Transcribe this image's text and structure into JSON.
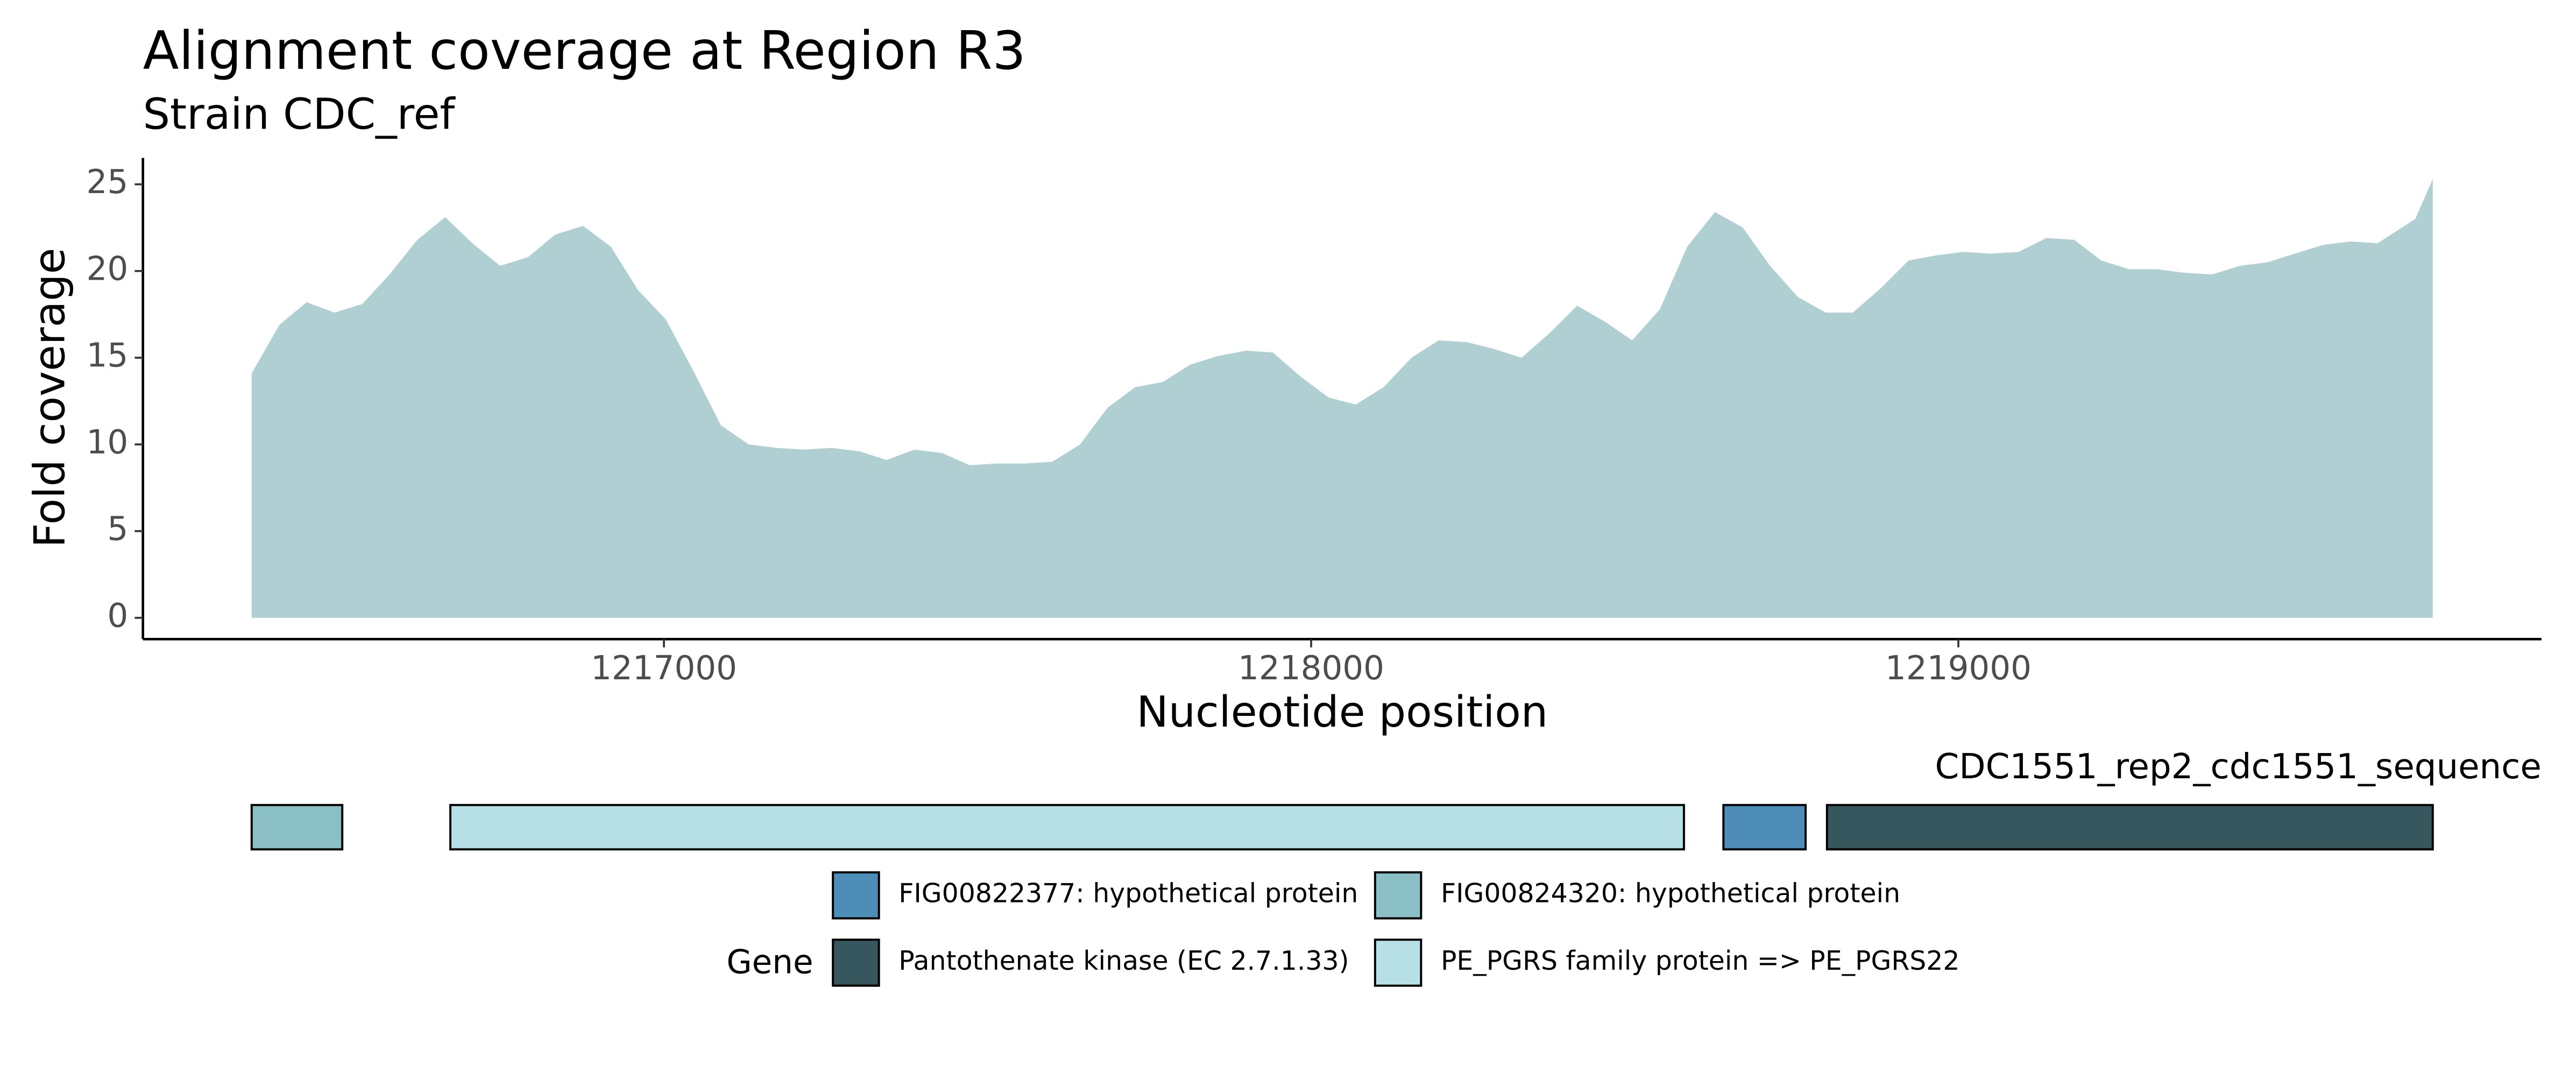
{
  "chart_data": [
    {
      "type": "area",
      "title": "Alignment coverage at Region R3",
      "subtitle": "Strain CDC_ref",
      "x_label": "Nucleotide position",
      "y_label": "Fold coverage",
      "color": "#b0cfd2",
      "x": [
        1216363,
        1216406,
        1216448,
        1216491,
        1216534,
        1216576,
        1216619,
        1216662,
        1216704,
        1216747,
        1216790,
        1216832,
        1216875,
        1216918,
        1216960,
        1217003,
        1217046,
        1217088,
        1217131,
        1217174,
        1217216,
        1217259,
        1217302,
        1217344,
        1217387,
        1217430,
        1217472,
        1217515,
        1217558,
        1217600,
        1217643,
        1217685,
        1217728,
        1217771,
        1217813,
        1217856,
        1217899,
        1217941,
        1217984,
        1218027,
        1218069,
        1218112,
        1218155,
        1218197,
        1218240,
        1218283,
        1218325,
        1218368,
        1218411,
        1218453,
        1218496,
        1218539,
        1218581,
        1218624,
        1218667,
        1218709,
        1218752,
        1218795,
        1218837,
        1218880,
        1218923,
        1218965,
        1219008,
        1219051,
        1219093,
        1219136,
        1219179,
        1219221,
        1219264,
        1219307,
        1219349,
        1219392,
        1219435,
        1219477,
        1219520,
        1219563,
        1219605,
        1219648,
        1219706,
        1219733
      ],
      "values": [
        14.1,
        16.9,
        18.2,
        17.6,
        18.1,
        19.8,
        21.8,
        23.1,
        21.6,
        20.3,
        20.8,
        22.1,
        22.6,
        21.4,
        18.9,
        17.2,
        14.2,
        11.1,
        10.0,
        9.8,
        9.7,
        9.8,
        9.6,
        9.1,
        9.7,
        9.5,
        8.8,
        8.9,
        8.9,
        9.0,
        10.0,
        12.1,
        13.3,
        13.6,
        14.6,
        15.1,
        15.4,
        15.3,
        13.9,
        12.7,
        12.3,
        13.3,
        15.0,
        16.0,
        15.9,
        15.5,
        15.0,
        16.4,
        18.0,
        17.1,
        16.0,
        17.8,
        21.4,
        23.4,
        22.5,
        20.3,
        18.5,
        17.6,
        17.6,
        19.0,
        20.6,
        20.9,
        21.1,
        21.0,
        21.1,
        21.9,
        21.8,
        20.6,
        20.1,
        20.1,
        19.9,
        19.8,
        20.3,
        20.5,
        21.0,
        21.5,
        21.7,
        21.6,
        23.0,
        25.3
      ],
      "xlim": [
        1216195,
        1219901
      ],
      "ylim": [
        -1.23,
        26.52
      ],
      "xticks": [
        1217000,
        1218000,
        1219000
      ],
      "yticks": [
        0,
        5,
        10,
        15,
        20,
        25
      ]
    },
    {
      "type": "track",
      "title": "CDC1551_rep2_cdc1551_sequence",
      "legend_title": "Gene",
      "xlim": [
        1216195,
        1219901
      ],
      "series": [
        {
          "name": "FIG00822377: hypothetical protein",
          "color": "#4f8db9",
          "ranges": [
            [
              1218637,
              1218764
            ]
          ]
        },
        {
          "name": "FIG00824320: hypothetical protein",
          "color": "#8bbfc6",
          "ranges": [
            [
              1216363,
              1216503
            ]
          ]
        },
        {
          "name": "Pantothenate kinase (EC 2.7.1.33)",
          "color": "#37575f",
          "ranges": [
            [
              1218797,
              1219733
            ]
          ]
        },
        {
          "name": "PE_PGRS family protein => PE_PGRS22",
          "color": "#b6dfe6",
          "ranges": [
            [
              1216670,
              1218576
            ]
          ]
        }
      ]
    }
  ]
}
